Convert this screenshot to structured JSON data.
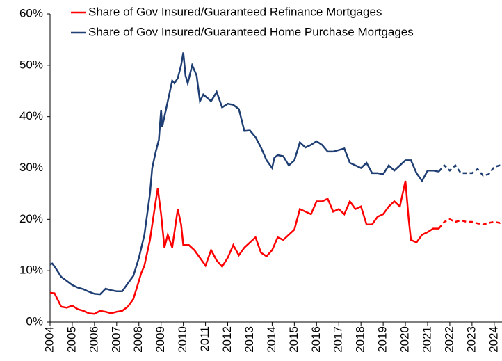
{
  "chart_data": {
    "type": "line",
    "series": [
      {
        "name": "Share of Gov Insured/Guaranteed Refinance Mortgages",
        "color": "#ff0000",
        "x": [
          2004.0,
          2004.2,
          2004.5,
          2004.75,
          2005.0,
          2005.25,
          2005.5,
          2005.75,
          2006.0,
          2006.25,
          2006.5,
          2006.75,
          2007.0,
          2007.25,
          2007.5,
          2007.75,
          2008.0,
          2008.1,
          2008.25,
          2008.5,
          2008.75,
          2008.85,
          2009.0,
          2009.15,
          2009.3,
          2009.5,
          2009.75,
          2009.9,
          2010.0,
          2010.25,
          2010.5,
          2010.75,
          2011.0,
          2011.25,
          2011.5,
          2011.75,
          2012.0,
          2012.25,
          2012.5,
          2012.75,
          2013.0,
          2013.25,
          2013.5,
          2013.75,
          2014.0,
          2014.25,
          2014.5,
          2014.75,
          2015.0,
          2015.25,
          2015.5,
          2015.75,
          2016.0,
          2016.25,
          2016.5,
          2016.75,
          2017.0,
          2017.25,
          2017.5,
          2017.75,
          2018.0,
          2018.25,
          2018.5,
          2018.75,
          2019.0,
          2019.25,
          2019.5,
          2019.75,
          2020.0,
          2020.15,
          2020.25,
          2020.5,
          2020.75,
          2021.0,
          2021.25,
          2021.5,
          2021.75,
          2022.0,
          2022.25,
          2022.5,
          2022.75,
          2023.0,
          2023.25,
          2023.5,
          2023.75,
          2024.0,
          2024.25,
          2024.35
        ],
        "values": [
          5.7,
          5.6,
          3.0,
          2.8,
          3.2,
          2.5,
          2.2,
          1.7,
          1.6,
          2.2,
          2.0,
          1.7,
          2.0,
          2.2,
          3.0,
          4.5,
          8.0,
          9.5,
          11,
          16,
          23.3,
          26,
          21,
          14.5,
          17,
          14.5,
          22,
          19,
          15,
          15,
          14,
          12.5,
          11,
          14,
          12,
          10.8,
          12.5,
          15,
          13,
          14.5,
          15.5,
          16.5,
          13.5,
          12.8,
          14,
          16.5,
          16,
          17,
          18,
          22,
          21.5,
          21,
          23.5,
          23.5,
          24,
          21.5,
          22,
          21,
          23.5,
          22,
          22.5,
          19,
          19,
          20.5,
          21,
          22.5,
          23.5,
          22.5,
          27.5,
          20,
          16,
          15.5,
          17,
          17.5,
          18.2,
          18.2,
          19.5,
          20,
          19.5,
          19.8,
          19.5,
          19.5,
          19.2,
          19,
          19.3,
          19.5,
          19.3,
          19.8
        ]
      },
      {
        "name": "Share of Gov Insured/Guaranteed Home Purchase Mortgages",
        "color": "#1f3f74",
        "x": [
          2004.0,
          2004.1,
          2004.25,
          2004.5,
          2004.75,
          2005.0,
          2005.25,
          2005.5,
          2005.75,
          2006.0,
          2006.25,
          2006.5,
          2006.75,
          2007.0,
          2007.25,
          2007.5,
          2007.75,
          2008.0,
          2008.25,
          2008.5,
          2008.6,
          2008.75,
          2008.9,
          2009.0,
          2009.05,
          2009.25,
          2009.5,
          2009.6,
          2009.75,
          2009.9,
          2010.0,
          2010.1,
          2010.2,
          2010.4,
          2010.6,
          2010.75,
          2010.9,
          2011.25,
          2011.5,
          2011.75,
          2012.0,
          2012.25,
          2012.5,
          2012.75,
          2013.0,
          2013.25,
          2013.5,
          2013.75,
          2014.0,
          2014.1,
          2014.25,
          2014.5,
          2014.75,
          2015.0,
          2015.25,
          2015.5,
          2015.75,
          2016.0,
          2016.25,
          2016.5,
          2016.75,
          2017.0,
          2017.25,
          2017.5,
          2017.75,
          2018.0,
          2018.25,
          2018.5,
          2018.75,
          2019.0,
          2019.25,
          2019.5,
          2019.75,
          2020.0,
          2020.25,
          2020.5,
          2020.75,
          2021.0,
          2021.25,
          2021.5,
          2021.75,
          2022.0,
          2022.25,
          2022.5,
          2022.75,
          2023.0,
          2023.25,
          2023.5,
          2023.75,
          2024.0,
          2024.25,
          2024.35
        ],
        "values": [
          11.2,
          11.4,
          10.5,
          8.8,
          8.0,
          7.2,
          6.7,
          6.4,
          5.9,
          5.5,
          5.4,
          6.5,
          6.2,
          6.0,
          6.0,
          7.5,
          9.0,
          12.5,
          17,
          25,
          30,
          33,
          35.5,
          41.3,
          38,
          42,
          47,
          46.5,
          47.5,
          50,
          52.5,
          48,
          46.5,
          50,
          48,
          43,
          44.3,
          43,
          44.8,
          41.8,
          42.5,
          42.3,
          41.5,
          37.2,
          37.3,
          36,
          34,
          31.5,
          30,
          32,
          32.5,
          32.3,
          30.5,
          31.5,
          35,
          34,
          34.5,
          35.2,
          34.5,
          33.2,
          33.2,
          33.5,
          33.8,
          31,
          30.5,
          30,
          31,
          29,
          29,
          28.8,
          30.5,
          29.5,
          30.5,
          31.5,
          31.5,
          29,
          27.5,
          29.5,
          29.5,
          29.3,
          30.5,
          29.5,
          30.5,
          29,
          29,
          29,
          29.8,
          28.5,
          28.8,
          30.2,
          30.5,
          30.5
        ]
      }
    ],
    "dashed_from": 2021.6,
    "xlim": [
      2004,
      2024.35
    ],
    "xticks": [
      2004,
      2005,
      2006,
      2007,
      2008,
      2009,
      2010,
      2011,
      2012,
      2013,
      2014,
      2015,
      2016,
      2017,
      2018,
      2019,
      2020,
      2021,
      2022,
      2023,
      2024
    ],
    "ylim": [
      0,
      60
    ],
    "yticks": [
      {
        "value": 0,
        "label": "0%"
      },
      {
        "value": 10,
        "label": "10%"
      },
      {
        "value": 20,
        "label": "20%"
      },
      {
        "value": 30,
        "label": "30%"
      },
      {
        "value": 40,
        "label": "40%"
      },
      {
        "value": 50,
        "label": "50%"
      },
      {
        "value": 60,
        "label": "60%"
      }
    ]
  }
}
